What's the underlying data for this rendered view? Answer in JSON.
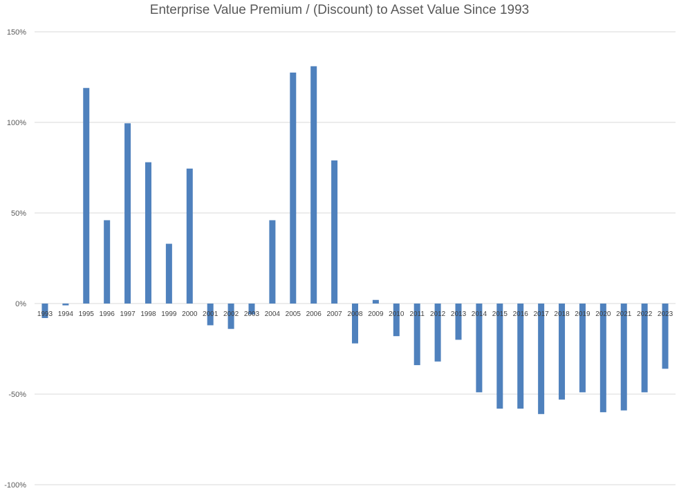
{
  "chart_data": {
    "type": "bar",
    "title": "Enterprise Value Premium / (Discount) to Asset Value Since 1993",
    "xlabel": "",
    "ylabel": "",
    "ylim": [
      -100,
      150
    ],
    "y_ticks": [
      150,
      100,
      50,
      0,
      -50,
      -100
    ],
    "y_tick_labels": [
      "150%",
      "100%",
      "50%",
      "0%",
      "-50%",
      "-100%"
    ],
    "grid": true,
    "bar_color": "#4F81BD",
    "gridline_color": "#D9D9D9",
    "categories": [
      "1993",
      "1994",
      "1995",
      "1996",
      "1997",
      "1998",
      "1999",
      "2000",
      "2001",
      "2002",
      "2003",
      "2004",
      "2005",
      "2006",
      "2007",
      "2008",
      "2009",
      "2010",
      "2011",
      "2012",
      "2013",
      "2014",
      "2015",
      "2016",
      "2017",
      "2018",
      "2019",
      "2020",
      "2021",
      "2022",
      "2023"
    ],
    "values": [
      -8,
      -1,
      119,
      46,
      99.5,
      78,
      33,
      74.5,
      -12,
      -14,
      -6,
      46,
      127.5,
      131,
      79,
      -22,
      2,
      -18,
      -34,
      -32,
      -20,
      -49,
      -58,
      -58,
      -61,
      -53,
      -49,
      -60,
      -59,
      -49,
      -36
    ]
  }
}
